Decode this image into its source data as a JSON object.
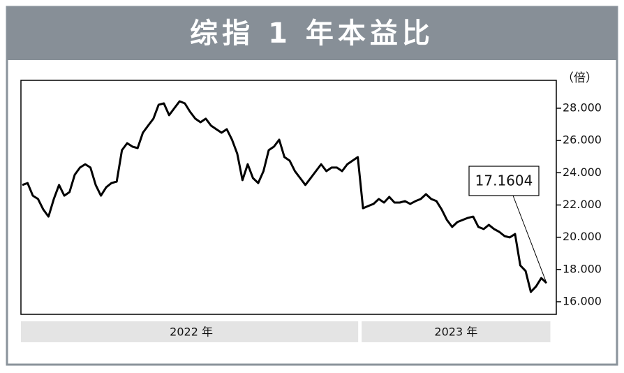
{
  "chart_data": {
    "type": "line",
    "title": "综指 1 年本益比",
    "y_unit": "（倍）",
    "values": [
      23.24,
      23.36,
      22.58,
      22.37,
      21.72,
      21.28,
      22.37,
      23.24,
      22.58,
      22.8,
      23.88,
      24.32,
      24.53,
      24.32,
      23.24,
      22.58,
      23.1,
      23.36,
      23.45,
      25.4,
      25.83,
      25.62,
      25.53,
      26.48,
      26.92,
      27.35,
      28.22,
      28.3,
      27.57,
      28.0,
      28.43,
      28.3,
      27.78,
      27.35,
      27.13,
      27.35,
      26.92,
      26.7,
      26.48,
      26.7,
      26.05,
      25.18,
      23.54,
      24.53,
      23.67,
      23.36,
      24.1,
      25.4,
      25.62,
      26.05,
      24.97,
      24.75,
      24.1,
      23.67,
      23.24,
      23.67,
      24.1,
      24.53,
      24.1,
      24.32,
      24.32,
      24.1,
      24.53,
      24.75,
      24.97,
      21.8,
      21.94,
      22.07,
      22.37,
      22.15,
      22.5,
      22.15,
      22.15,
      22.24,
      22.07,
      22.24,
      22.37,
      22.67,
      22.37,
      22.24,
      21.72,
      21.07,
      20.64,
      20.94,
      21.07,
      21.2,
      21.28,
      20.64,
      20.51,
      20.77,
      20.51,
      20.33,
      20.07,
      19.99,
      20.2,
      18.25,
      17.91,
      16.61,
      16.95,
      17.47,
      17.1604
    ],
    "groups": [
      {
        "label": "2022 年",
        "count": 65
      },
      {
        "label": "2023 年",
        "count": 36
      }
    ],
    "color": "#000000",
    "ylim": [
      15.22,
      29.73
    ],
    "yticks": [
      {
        "value": 16,
        "label": "16.000"
      },
      {
        "value": 18,
        "label": "18.000"
      },
      {
        "value": 20,
        "label": "20.000"
      },
      {
        "value": 22,
        "label": "22.000"
      },
      {
        "value": 24,
        "label": "24.000"
      },
      {
        "value": 26,
        "label": "26.000"
      },
      {
        "value": 28,
        "label": "28.000"
      }
    ]
  }
}
